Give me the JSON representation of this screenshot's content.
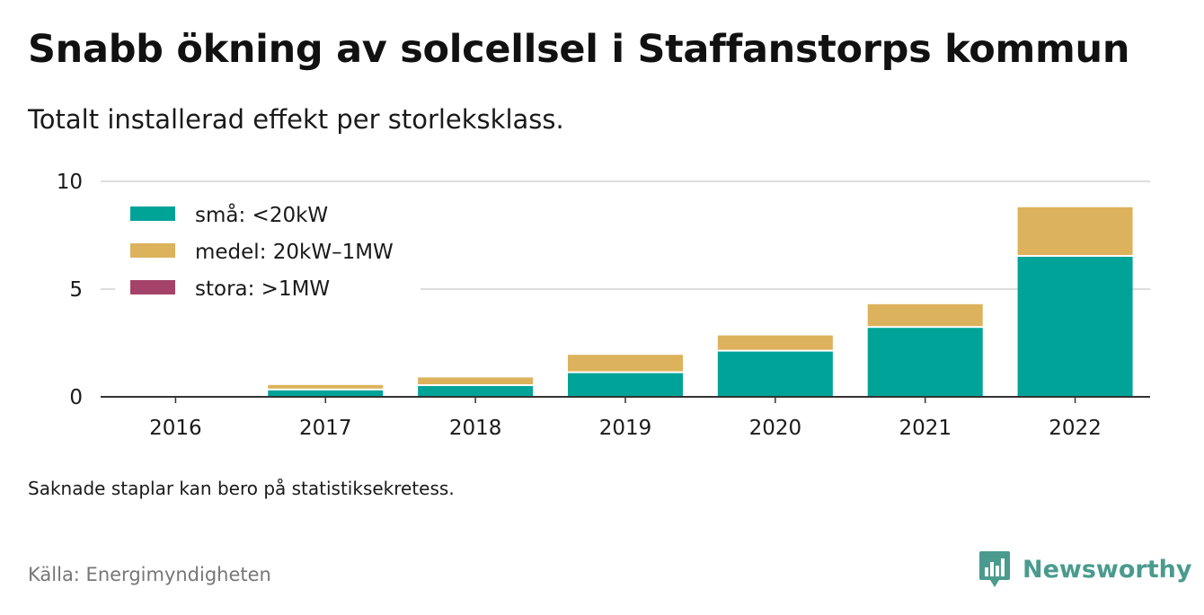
{
  "title": "Snabb ökning av solcellsel i Staffanstorps kommun",
  "subtitle": "Totalt installerad effekt per storleksklass.",
  "note": "Saknade staplar kan bero på statistiksekretess.",
  "source": "Källa: Energimyndigheten",
  "brand": "Newsworthy",
  "colors": {
    "sma": "#00a398",
    "medel": "#ddb25c",
    "stora": "#a5426a",
    "grid": "#dddddd",
    "axis": "#333333",
    "brand": "#4a9b8e"
  },
  "chart_data": {
    "type": "bar",
    "stacked": true,
    "categories": [
      "2016",
      "2017",
      "2018",
      "2019",
      "2020",
      "2021",
      "2022"
    ],
    "series": [
      {
        "name": "små: <20kW",
        "color": "#00a398",
        "values": [
          0.0,
          0.3,
          0.5,
          1.1,
          2.1,
          3.2,
          6.5
        ]
      },
      {
        "name": "medel: 20kW–1MW",
        "color": "#ddb25c",
        "values": [
          0.0,
          0.25,
          0.4,
          0.85,
          0.75,
          1.1,
          2.3
        ]
      },
      {
        "name": "stora: >1MW",
        "color": "#a5426a",
        "values": [
          0,
          0,
          0,
          0,
          0,
          0,
          0
        ]
      }
    ],
    "yticks": [
      0,
      5,
      10
    ],
    "ylim": [
      0,
      10
    ],
    "grid": true,
    "legend": "top-left"
  }
}
